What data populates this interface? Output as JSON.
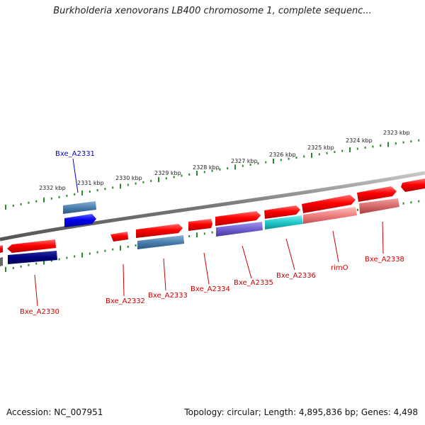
{
  "title": "Burkholderia xenovorans LB400 chromosome 1, complete sequenc...",
  "footer": {
    "accession": "Accession: NC_007951",
    "summary": "Topology: circular; Length: 4,895,836 bp; Genes: 4,498"
  },
  "scale_labels": [
    "2323 kbp",
    "2324 kbp",
    "2325 kbp",
    "2326 kbp",
    "2327 kbp",
    "2328 kbp",
    "2329 kbp",
    "2330 kbp",
    "2331 kbp",
    "2332 kbp"
  ],
  "gene_labels": [
    {
      "text": "Bxe_A2331",
      "color": "#0000cc"
    },
    {
      "text": "Bxe_A2330",
      "color": "#cc0000"
    },
    {
      "text": "Bxe_A2332",
      "color": "#cc0000"
    },
    {
      "text": "Bxe_A2333",
      "color": "#cc0000"
    },
    {
      "text": "Bxe_A2334",
      "color": "#cc0000"
    },
    {
      "text": "Bxe_A2335",
      "color": "#cc0000"
    },
    {
      "text": "Bxe_A2336",
      "color": "#cc0000"
    },
    {
      "text": "rimO",
      "color": "#cc0000"
    },
    {
      "text": "Bxe_A2338",
      "color": "#cc0000"
    }
  ],
  "colors": {
    "backbone": "#888888",
    "tick": "#2a8a2a",
    "forward_gene": "#ff0000",
    "reverse_gene": "#0000ee",
    "steelblue_gene": "#4a7fb0",
    "navy_gene": "#000080",
    "purple_gene": "#7060d0",
    "cyan_gene": "#20c8c8",
    "pink_gene": "#f08080",
    "rose_gene": "#d86a6a"
  }
}
